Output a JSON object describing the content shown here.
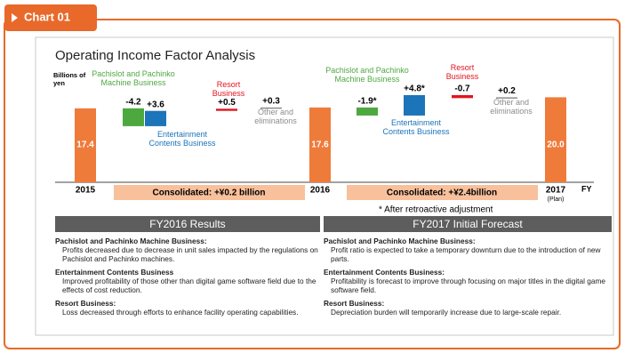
{
  "header": {
    "tab": "Chart 01"
  },
  "chart_data": {
    "type": "waterfall",
    "title": "Operating Income Factor Analysis",
    "y_label": "Billions of yen",
    "x_label": "FY",
    "categories": [
      "2015",
      "Pachislot and Pachinko Machine Business",
      "Entertainment Contents Business",
      "Resort Business",
      "Other and eliminations",
      "2016",
      "Pachislot and Pachinko Machine Business",
      "Entertainment Contents Business",
      "Resort Business",
      "Other and eliminations",
      "2017"
    ],
    "category_notes": {
      "10": "(Plan)"
    },
    "measure": [
      "total",
      "relative",
      "relative",
      "relative",
      "relative",
      "total",
      "relative",
      "relative",
      "relative",
      "relative",
      "total"
    ],
    "values": [
      17.4,
      -4.2,
      3.6,
      0.5,
      0.3,
      17.6,
      -1.9,
      4.8,
      -0.7,
      0.2,
      20.0
    ],
    "value_labels": [
      "17.4",
      "-4.2",
      "+3.6",
      "+0.5",
      "+0.3",
      "17.6",
      "-1.9*",
      "+4.8*",
      "-0.7",
      "+0.2",
      "20.0"
    ],
    "colors": [
      "#ef7b3b",
      "#4ea840",
      "#1c74b9",
      "#e2141f",
      "#8c8c8c",
      "#ef7b3b",
      "#4ea840",
      "#1c74b9",
      "#e2141f",
      "#8c8c8c",
      "#ef7b3b"
    ],
    "annotations": [
      "Consolidated: +¥0.2 billion",
      "Consolidated: +¥2.4billion",
      "* After retroactive adjustment"
    ]
  },
  "panels": [
    {
      "header": "FY2016 Results",
      "items": [
        {
          "title": "Pachislot and Pachinko Machine Business:",
          "text": "Profits decreased due to decrease in unit sales impacted by the regulations on Pachislot and Pachinko machines."
        },
        {
          "title": "Entertainment Contents Business",
          "text": "Improved profitability of those other than digital game software field due to the effects of cost reduction."
        },
        {
          "title": "Resort Business:",
          "text": "Loss decreased through efforts to enhance facility operating capabilities."
        }
      ]
    },
    {
      "header": "FY2017 Initial Forecast",
      "items": [
        {
          "title": "Pachislot and Pachinko Machine Business:",
          "text": "Profit ratio is expected to take a temporary downturn due to the introduction of new parts."
        },
        {
          "title": "Entertainment Contents Business:",
          "text": "Profitability is forecast to improve through focusing on major titles in the digital game software field."
        },
        {
          "title": "Resort Business:",
          "text": "Depreciation burden will temporarily increase due to large-scale repair."
        }
      ]
    }
  ]
}
